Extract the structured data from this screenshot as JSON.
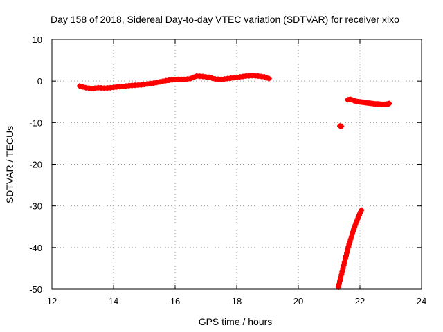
{
  "chart_data": {
    "type": "scatter",
    "title": "Day 158 of 2018, Sidereal Day-to-day VTEC variation (SDTVAR) for receiver xixo",
    "xlabel": "GPS time / hours",
    "ylabel": "SDTVAR / TECUs",
    "xlim": [
      12,
      24
    ],
    "ylim": [
      -50,
      10
    ],
    "xticks": [
      12,
      14,
      16,
      18,
      20,
      22,
      24
    ],
    "yticks": [
      -50,
      -40,
      -30,
      -20,
      -10,
      0,
      10
    ],
    "grid": true,
    "marker": "plus",
    "color": "#ff0000",
    "series": [
      {
        "x": [
          12.9,
          13.1,
          13.3,
          13.5,
          13.7,
          13.9,
          14.1,
          14.3,
          14.5,
          14.7,
          14.9,
          15.1,
          15.3,
          15.5,
          15.7,
          15.9,
          16.1,
          16.3,
          16.5,
          16.7,
          16.9,
          17.1,
          17.3,
          17.5,
          17.7,
          17.9,
          18.1,
          18.3,
          18.5,
          18.7,
          18.9,
          19.05
        ],
        "y": [
          -1.2,
          -1.6,
          -1.8,
          -1.6,
          -1.7,
          -1.6,
          -1.4,
          -1.3,
          -1.1,
          -1.0,
          -0.9,
          -0.7,
          -0.5,
          -0.2,
          0.1,
          0.3,
          0.4,
          0.4,
          0.6,
          1.2,
          1.1,
          0.9,
          0.5,
          0.4,
          0.6,
          0.8,
          1.0,
          1.2,
          1.3,
          1.2,
          1.0,
          0.6
        ]
      },
      {
        "x": [
          21.6,
          21.7,
          21.8,
          21.9,
          22.0,
          22.1,
          22.2,
          22.3,
          22.4,
          22.5,
          22.6,
          22.7,
          22.8,
          22.9,
          22.95
        ],
        "y": [
          -4.5,
          -4.4,
          -4.7,
          -4.9,
          -5.0,
          -5.1,
          -5.2,
          -5.3,
          -5.4,
          -5.5,
          -5.5,
          -5.6,
          -5.6,
          -5.5,
          -5.4
        ]
      },
      {
        "x": [
          21.35,
          21.4
        ],
        "y": [
          -10.8,
          -10.9
        ]
      },
      {
        "x": [
          21.3,
          21.35,
          21.4,
          21.45,
          21.5,
          21.55,
          21.6,
          21.65,
          21.7,
          21.75,
          21.8,
          21.85,
          21.9,
          21.95,
          22.0,
          22.05
        ],
        "y": [
          -49.5,
          -48.0,
          -46.5,
          -45.0,
          -43.5,
          -42.0,
          -40.5,
          -39.2,
          -38.0,
          -36.8,
          -35.6,
          -34.6,
          -33.6,
          -32.7,
          -31.8,
          -31.0
        ]
      }
    ]
  }
}
